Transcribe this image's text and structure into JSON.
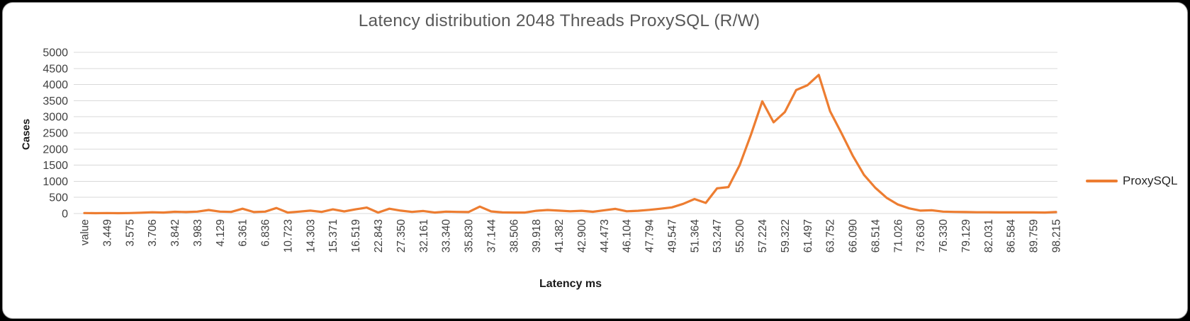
{
  "window": {
    "background": "#000000",
    "card_background": "#FFFFFF"
  },
  "chart_data": {
    "type": "line",
    "title": "Latency distribution 2048 Threads ProxySQL (R/W)",
    "xlabel": "Latency ms",
    "ylabel": "Cases",
    "ylim": [
      0,
      5000
    ],
    "ytick_step": 500,
    "grid": "horizontal",
    "legend_position": "right",
    "legend_entries": [
      "ProxySQL"
    ],
    "categories": [
      "value",
      "3.449",
      "3.575",
      "3.706",
      "3.842",
      "3.983",
      "4.129",
      "6.361",
      "6.836",
      "10.723",
      "14.303",
      "15.371",
      "16.519",
      "22.843",
      "27.350",
      "32.161",
      "33.340",
      "35.830",
      "37.144",
      "38.506",
      "39.918",
      "41.382",
      "42.900",
      "44.473",
      "46.104",
      "47.794",
      "49.547",
      "51.364",
      "53.247",
      "55.200",
      "57.224",
      "59.322",
      "61.497",
      "63.752",
      "66.090",
      "68.514",
      "71.026",
      "73.630",
      "76.330",
      "79.129",
      "82.031",
      "86.584",
      "89.759",
      "98.215"
    ],
    "points_per_category": 2,
    "series": [
      {
        "name": "ProxySQL",
        "color": "#ED7D31",
        "values": [
          15,
          12,
          15,
          12,
          15,
          25,
          40,
          30,
          55,
          45,
          60,
          110,
          60,
          50,
          150,
          45,
          60,
          170,
          30,
          60,
          90,
          50,
          130,
          65,
          130,
          185,
          30,
          150,
          90,
          50,
          80,
          30,
          60,
          50,
          45,
          215,
          65,
          35,
          30,
          30,
          85,
          110,
          90,
          70,
          85,
          55,
          100,
          145,
          70,
          85,
          115,
          150,
          190,
          300,
          450,
          330,
          780,
          820,
          1500,
          2450,
          3480,
          2830,
          3150,
          3830,
          3980,
          4300,
          3170,
          2500,
          1800,
          1200,
          800,
          490,
          280,
          160,
          90,
          100,
          60,
          50,
          45,
          40,
          40,
          35,
          35,
          35,
          35,
          30,
          45
        ]
      }
    ],
    "colors": {
      "grid": "#D9D9D9",
      "tick_text": "#404040",
      "title_text": "#595959",
      "axis_title_text": "#1A1A1A",
      "legend_text": "#262626"
    }
  }
}
